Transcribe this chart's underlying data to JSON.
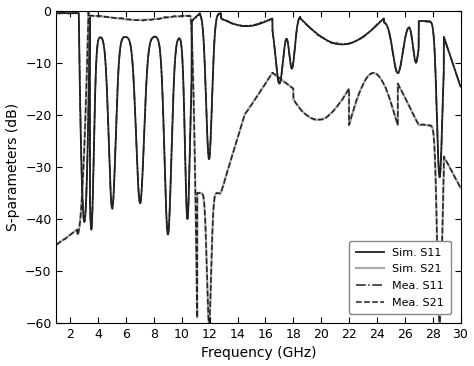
{
  "title": "",
  "xlabel": "Frequency (GHz)",
  "ylabel": "S-parameters (dB)",
  "xlim": [
    1,
    30
  ],
  "ylim": [
    -60,
    0
  ],
  "xticks": [
    2,
    4,
    6,
    8,
    10,
    12,
    14,
    16,
    18,
    20,
    22,
    24,
    26,
    28,
    30
  ],
  "yticks": [
    -60,
    -50,
    -40,
    -30,
    -20,
    -10,
    0
  ],
  "legend": [
    {
      "label": "Sim. S11",
      "color": "#222222",
      "lw": 1.3,
      "ls": "solid"
    },
    {
      "label": "Sim. S21",
      "color": "#aaaaaa",
      "lw": 1.6,
      "ls": "solid"
    },
    {
      "label": "Mea. S11",
      "color": "#222222",
      "lw": 1.1,
      "ls": "dashdot"
    },
    {
      "label": "Mea. S21",
      "color": "#222222",
      "lw": 1.1,
      "ls": "dashed"
    }
  ],
  "figsize": [
    4.74,
    3.66
  ],
  "dpi": 100
}
